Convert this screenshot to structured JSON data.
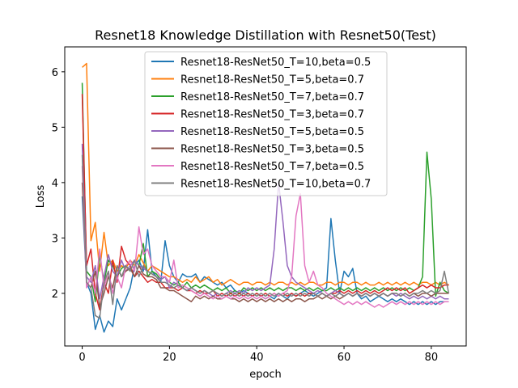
{
  "chart_data": {
    "type": "line",
    "title": "Resnet18 Knowledge Distillation with Resnet50(Test)",
    "xlabel": "epoch",
    "ylabel": "Loss",
    "xlim": [
      -4,
      88
    ],
    "ylim": [
      1.05,
      6.45
    ],
    "xticks": [
      0,
      20,
      40,
      60,
      80
    ],
    "yticks": [
      2,
      3,
      4,
      5,
      6
    ],
    "grid": false,
    "legend_position": "top-center",
    "series": [
      {
        "name": "Resnet18-ResNet50_T=10,beta=0.5",
        "color": "#1f77b4",
        "values": [
          3.75,
          2.2,
          2.0,
          1.35,
          1.6,
          1.3,
          1.5,
          1.4,
          1.9,
          1.7,
          1.9,
          2.1,
          2.5,
          2.6,
          2.4,
          3.15,
          2.4,
          2.3,
          2.2,
          2.95,
          2.5,
          2.3,
          2.2,
          2.35,
          2.3,
          2.3,
          2.35,
          2.2,
          2.3,
          2.25,
          2.2,
          2.15,
          2.2,
          2.1,
          2.15,
          2.05,
          2.0,
          2.05,
          2.0,
          1.95,
          2.0,
          1.95,
          1.9,
          1.95,
          1.9,
          2.0,
          1.95,
          1.9,
          2.0,
          1.95,
          2.0,
          2.05,
          2.0,
          1.95,
          2.0,
          2.05,
          2.1,
          3.35,
          2.6,
          2.0,
          2.4,
          2.3,
          2.45,
          2.0,
          1.9,
          1.95,
          1.85,
          1.9,
          1.95,
          1.9,
          1.85,
          1.9,
          1.85,
          1.9,
          1.85,
          1.8,
          1.85,
          1.8,
          1.85,
          1.8,
          1.85,
          1.8,
          1.85,
          1.85,
          1.85
        ]
      },
      {
        "name": "Resnet18-ResNet50_T=5,beta=0.7",
        "color": "#ff7f0e",
        "values": [
          6.08,
          6.15,
          2.95,
          3.28,
          2.4,
          3.1,
          2.5,
          2.6,
          2.4,
          2.5,
          2.45,
          2.6,
          2.5,
          2.7,
          2.55,
          2.4,
          2.5,
          2.45,
          2.4,
          2.35,
          2.3,
          2.3,
          2.25,
          2.2,
          2.25,
          2.2,
          2.3,
          2.2,
          2.25,
          2.3,
          2.2,
          2.25,
          2.15,
          2.2,
          2.25,
          2.2,
          2.15,
          2.2,
          2.2,
          2.15,
          2.2,
          2.2,
          2.15,
          2.2,
          2.15,
          2.2,
          2.2,
          2.15,
          2.2,
          2.15,
          2.2,
          2.15,
          2.2,
          2.2,
          2.15,
          2.15,
          2.2,
          2.2,
          2.15,
          2.2,
          2.2,
          2.15,
          2.2,
          2.2,
          2.15,
          2.2,
          2.15,
          2.15,
          2.2,
          2.15,
          2.2,
          2.15,
          2.2,
          2.15,
          2.2,
          2.15,
          2.2,
          2.15,
          2.2,
          2.2,
          2.15,
          2.2,
          2.15,
          2.2,
          2.15
        ]
      },
      {
        "name": "Resnet18-ResNet50_T=7,beta=0.7",
        "color": "#2ca02c",
        "values": [
          5.8,
          2.4,
          2.3,
          1.85,
          2.7,
          2.2,
          2.6,
          2.5,
          2.3,
          2.45,
          2.5,
          2.4,
          2.6,
          2.5,
          2.9,
          2.3,
          2.4,
          2.35,
          2.25,
          2.3,
          2.2,
          2.15,
          2.2,
          2.1,
          2.2,
          2.1,
          2.15,
          2.1,
          2.15,
          2.1,
          2.05,
          2.1,
          2.05,
          2.1,
          2.0,
          2.05,
          2.0,
          2.1,
          2.05,
          2.1,
          2.05,
          2.1,
          2.05,
          2.1,
          2.05,
          2.1,
          2.05,
          2.1,
          2.1,
          2.05,
          2.1,
          2.05,
          2.1,
          2.05,
          2.1,
          2.05,
          2.05,
          2.1,
          2.05,
          2.1,
          2.05,
          2.1,
          2.05,
          2.1,
          2.05,
          2.1,
          2.05,
          2.1,
          2.05,
          2.1,
          2.05,
          2.1,
          2.05,
          2.1,
          2.05,
          2.1,
          2.05,
          2.1,
          2.3,
          4.55,
          3.7,
          1.95,
          2.2,
          2.05,
          2.0
        ]
      },
      {
        "name": "Resnet18-ResNet50_T=3,beta=0.7",
        "color": "#d62728",
        "values": [
          5.6,
          2.5,
          2.8,
          2.0,
          1.7,
          2.2,
          2.0,
          2.6,
          2.2,
          2.85,
          2.6,
          2.5,
          2.3,
          2.4,
          2.3,
          2.2,
          2.25,
          2.2,
          2.2,
          2.1,
          2.1,
          2.1,
          2.05,
          2.1,
          2.05,
          2.05,
          2.0,
          2.05,
          2.0,
          2.0,
          2.05,
          1.95,
          2.0,
          1.95,
          2.0,
          1.95,
          2.0,
          1.95,
          2.0,
          1.95,
          2.0,
          1.95,
          2.0,
          1.95,
          2.0,
          1.95,
          2.0,
          1.95,
          2.0,
          1.95,
          2.0,
          1.95,
          2.0,
          2.0,
          1.95,
          2.0,
          1.95,
          2.0,
          2.0,
          2.05,
          2.0,
          2.05,
          2.0,
          2.05,
          2.0,
          2.05,
          2.0,
          2.05,
          2.0,
          2.05,
          2.1,
          2.05,
          2.1,
          2.05,
          2.1,
          2.0,
          2.05,
          2.1,
          2.15,
          2.1,
          2.15,
          2.1,
          2.1,
          2.15,
          2.15
        ]
      },
      {
        "name": "Resnet18-ResNet50_T=5,beta=0.5",
        "color": "#9467bd",
        "values": [
          4.7,
          2.3,
          2.2,
          2.5,
          1.9,
          2.3,
          2.7,
          2.4,
          2.3,
          2.6,
          2.4,
          2.5,
          2.6,
          2.5,
          2.45,
          2.4,
          2.35,
          2.3,
          2.25,
          2.3,
          2.1,
          2.2,
          2.15,
          2.1,
          2.05,
          2.1,
          2.05,
          2.0,
          2.05,
          2.0,
          1.95,
          2.0,
          1.95,
          2.0,
          2.05,
          2.0,
          2.05,
          2.0,
          2.1,
          2.05,
          2.1,
          2.05,
          2.1,
          2.15,
          2.8,
          4.0,
          3.3,
          2.5,
          2.3,
          2.2,
          2.15,
          2.1,
          2.05,
          2.0,
          2.05,
          2.0,
          1.95,
          2.0,
          2.05,
          2.0,
          1.95,
          2.0,
          1.95,
          2.0,
          1.95,
          2.0,
          1.95,
          2.0,
          1.95,
          2.0,
          1.95,
          2.0,
          1.95,
          2.0,
          1.95,
          1.9,
          1.95,
          1.9,
          1.95,
          1.9,
          1.95,
          1.9,
          1.95,
          1.9,
          1.9
        ]
      },
      {
        "name": "Resnet18-ResNet50_T=3,beta=0.5",
        "color": "#8c564b",
        "values": [
          4.0,
          2.2,
          2.1,
          2.4,
          1.75,
          2.0,
          2.3,
          2.1,
          2.5,
          2.3,
          2.4,
          2.45,
          2.3,
          2.5,
          2.35,
          2.3,
          2.3,
          2.25,
          2.1,
          2.1,
          2.05,
          2.05,
          2.0,
          1.95,
          1.9,
          1.85,
          1.95,
          1.9,
          1.95,
          1.9,
          1.95,
          1.9,
          1.9,
          1.95,
          1.9,
          1.9,
          1.85,
          1.9,
          1.85,
          1.9,
          1.85,
          1.9,
          1.85,
          1.9,
          1.85,
          1.9,
          1.85,
          1.9,
          1.85,
          1.9,
          1.9,
          1.85,
          1.9,
          1.9,
          1.95,
          1.9,
          1.95,
          1.9,
          1.95,
          1.9,
          1.95,
          2.0,
          1.95,
          2.0,
          1.95,
          2.0,
          1.95,
          2.0,
          1.95,
          2.0,
          1.95,
          2.0,
          2.0,
          1.95,
          2.0,
          1.95,
          2.0,
          1.95,
          2.0,
          2.0,
          1.95,
          2.0,
          2.0,
          2.0,
          2.0
        ]
      },
      {
        "name": "Resnet18-ResNet50_T=7,beta=0.5",
        "color": "#e377c2",
        "values": [
          4.3,
          2.1,
          2.3,
          2.0,
          2.8,
          2.1,
          2.4,
          2.0,
          2.3,
          2.1,
          2.5,
          2.6,
          2.4,
          3.2,
          2.7,
          2.8,
          2.5,
          2.4,
          2.3,
          2.3,
          2.2,
          2.6,
          2.1,
          2.15,
          2.1,
          2.05,
          2.0,
          1.95,
          2.0,
          1.95,
          1.9,
          1.95,
          1.9,
          1.95,
          1.9,
          1.95,
          1.9,
          1.95,
          1.9,
          1.95,
          1.9,
          1.95,
          1.9,
          1.95,
          2.0,
          1.95,
          2.0,
          2.05,
          2.3,
          3.4,
          3.8,
          2.5,
          2.2,
          2.4,
          2.15,
          2.1,
          2.0,
          1.95,
          1.9,
          1.85,
          1.8,
          1.85,
          1.8,
          1.85,
          1.8,
          1.85,
          1.8,
          1.75,
          1.8,
          1.75,
          1.8,
          1.85,
          1.8,
          1.85,
          1.8,
          1.85,
          1.8,
          1.85,
          1.8,
          1.85,
          1.8,
          1.85,
          1.8,
          1.85,
          1.85
        ]
      },
      {
        "name": "Resnet18-ResNet50_T=10,beta=0.7",
        "color": "#7f7f7f",
        "values": [
          4.5,
          2.2,
          2.1,
          1.6,
          1.55,
          2.2,
          2.4,
          1.8,
          2.5,
          2.3,
          2.5,
          2.4,
          2.6,
          2.3,
          2.5,
          2.4,
          2.35,
          2.3,
          2.2,
          2.2,
          2.15,
          2.1,
          2.15,
          2.1,
          2.05,
          2.1,
          2.05,
          2.0,
          2.05,
          2.0,
          2.05,
          2.0,
          1.95,
          2.0,
          1.95,
          2.0,
          1.95,
          2.0,
          1.95,
          2.0,
          1.95,
          2.0,
          1.95,
          2.0,
          1.95,
          2.0,
          1.95,
          2.0,
          1.95,
          2.0,
          1.95,
          2.0,
          1.95,
          2.0,
          1.95,
          2.0,
          1.95,
          2.0,
          1.95,
          2.0,
          1.95,
          2.0,
          1.95,
          2.0,
          1.95,
          2.0,
          1.95,
          2.0,
          1.95,
          2.0,
          1.95,
          2.0,
          2.0,
          1.95,
          2.0,
          1.95,
          2.0,
          2.0,
          2.05,
          2.0,
          2.05,
          2.0,
          2.05,
          2.4,
          2.0
        ]
      }
    ]
  }
}
